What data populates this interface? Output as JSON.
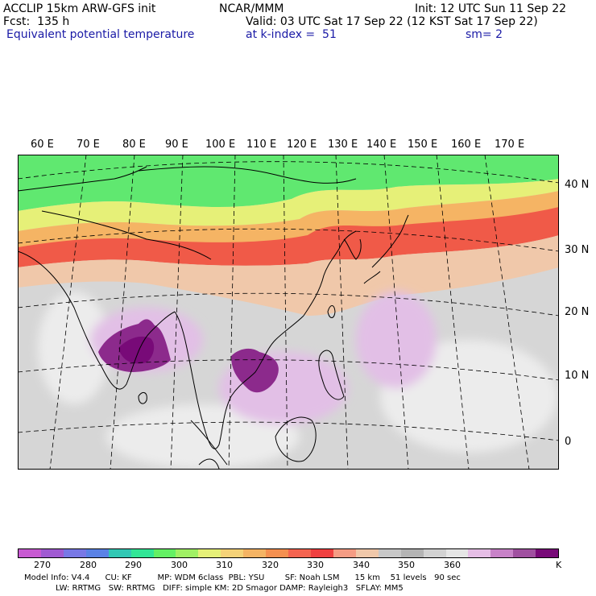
{
  "header": {
    "line1_left": "ACCLIP 15km ARW-GFS init",
    "line1_mid": "NCAR/MMM",
    "line1_right": "Init: 12 UTC Sun 11 Sep 22",
    "line2_left": "Fcst:  135 h",
    "line2_right": "Valid: 03 UTC Sat 17 Sep 22 (12 KST Sat 17 Sep 22)",
    "line3_left": "Equivalent potential temperature",
    "line3_mid": "at k-index =  51",
    "line3_right": "sm= 2"
  },
  "lon_labels": [
    "60 E",
    "70 E",
    "80 E",
    "90 E",
    "100 E",
    "110 E",
    "120 E",
    "130 E",
    "140 E",
    "150 E",
    "160 E",
    "170 E"
  ],
  "lat_labels": [
    "40 N",
    "30 N",
    "20 N",
    "10 N",
    "0"
  ],
  "colorbar": {
    "colors": [
      "#c85ad2",
      "#a05ad2",
      "#7878e6",
      "#5a82e6",
      "#32c8b4",
      "#32e696",
      "#64f064",
      "#a0f064",
      "#e6f078",
      "#f5d278",
      "#f5b464",
      "#f59050",
      "#f56450",
      "#f04040",
      "#f59c84",
      "#f0c8aa",
      "#c8c8c8",
      "#b4b4b4",
      "#d2d2d2",
      "#e6e6e6",
      "#e6bee6",
      "#c882c8",
      "#a050a0",
      "#780a78"
    ],
    "labels": [
      "270",
      "280",
      "290",
      "300",
      "310",
      "320",
      "330",
      "340",
      "350",
      "360",
      "K"
    ]
  },
  "footer": {
    "line1": "Model Info: V4.4      CU: KF          MP: WDM 6class  PBL: YSU        SF: Noah LSM      15 km    51 levels   90 sec",
    "line2": "LW: RRTMG   SW: RRTMG   DIFF: simple KM: 2D Smagor DAMP: Rayleigh3   SFLAY: MM5"
  }
}
